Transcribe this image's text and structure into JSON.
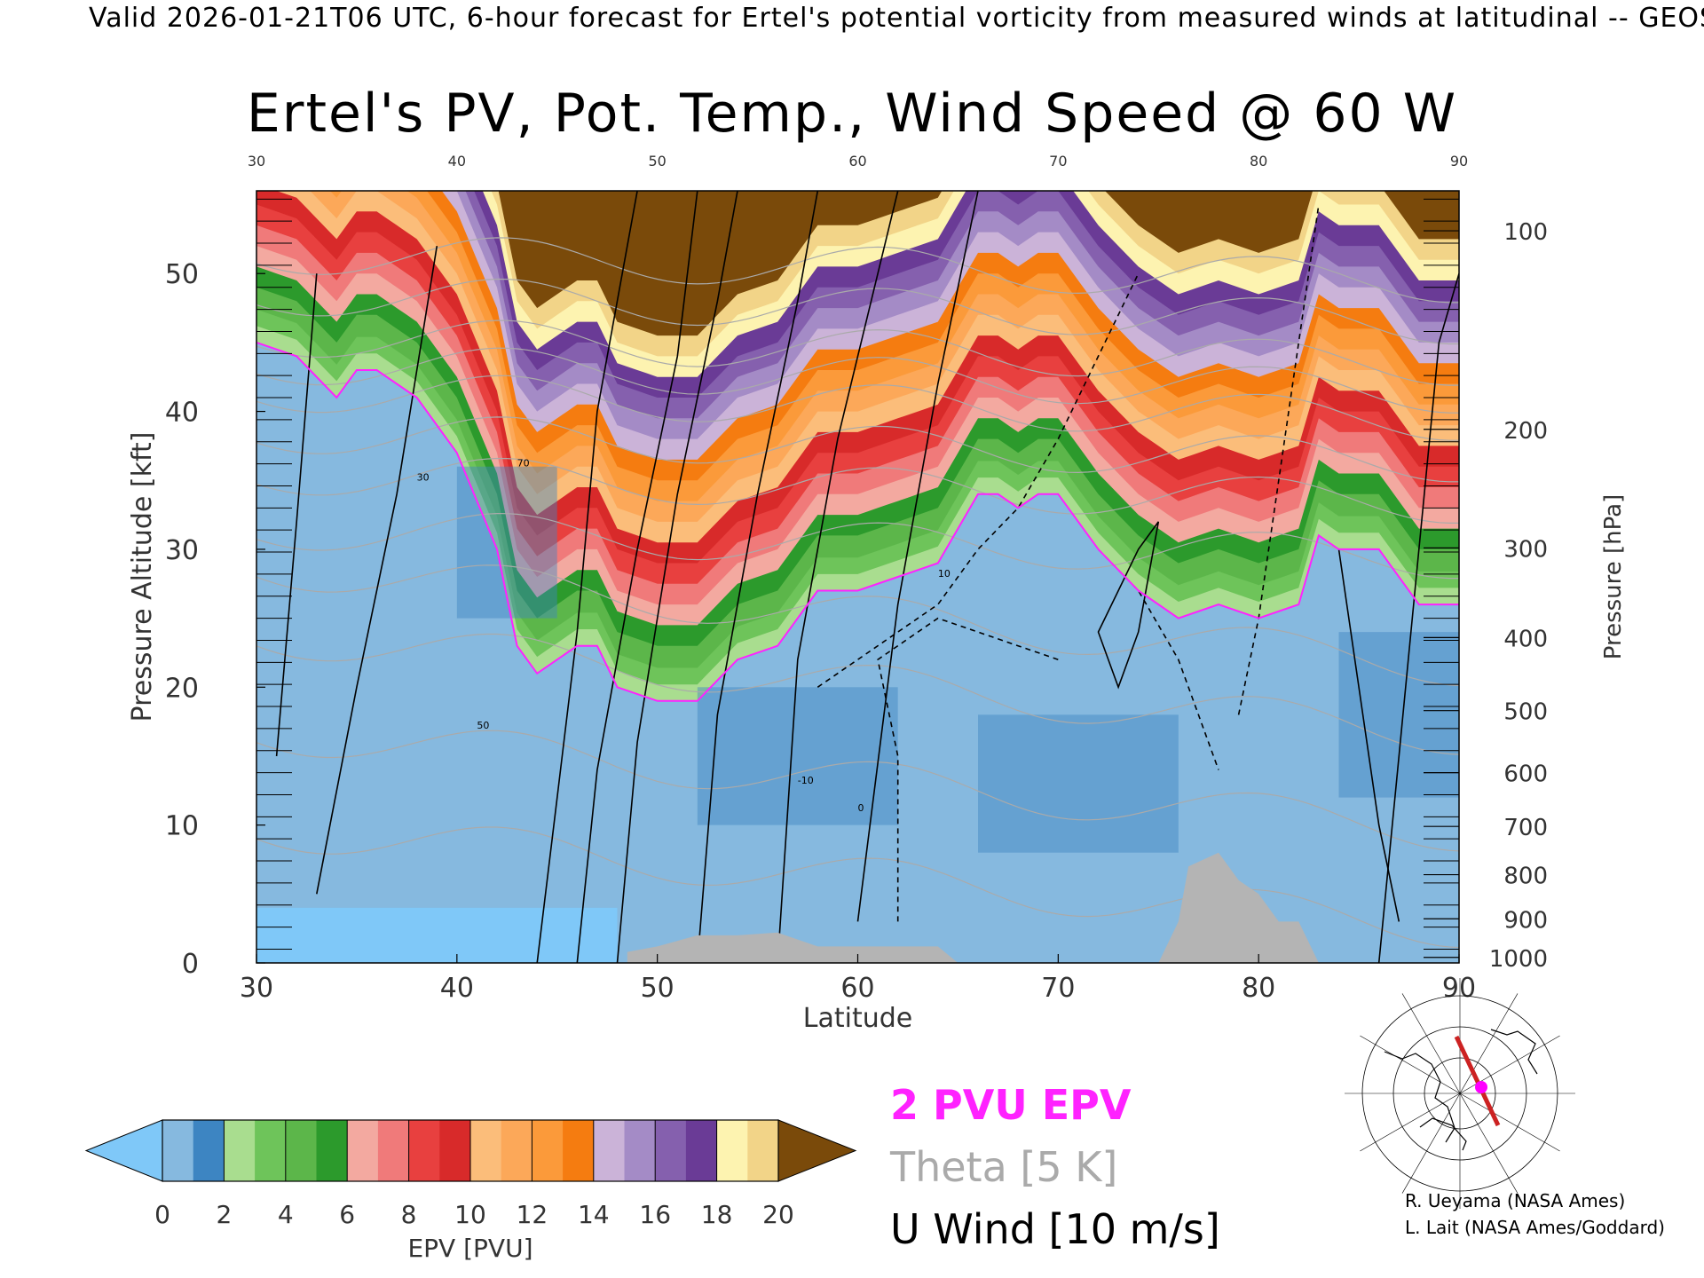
{
  "header": {
    "caption": "Valid 2026-01-21T06 UTC, 6-hour forecast for Ertel's potential vorticity from measured winds at latitudinal -- GEOS",
    "title": "Ertel's PV, Pot. Temp., Wind Speed @ 60 W"
  },
  "legend": {
    "epv_line": "2 PVU EPV",
    "theta_line": "Theta [5 K]",
    "u_line": "U Wind [10 m/s]"
  },
  "credits": {
    "line1": "R. Ueyama (NASA Ames)",
    "line2": "L. Lait (NASA Ames/Goddard)"
  },
  "colors": {
    "pv_contour": "#ff22ff",
    "theta_contour": "#aaaaaa",
    "wind_contour": "#000000",
    "terrain": "#b4b4b4",
    "map_path": "#cc2222",
    "map_marker": "#ff00ff"
  },
  "chart_data": {
    "type": "heatmap",
    "xlabel": "Latitude",
    "ylabel": "Pressure Altitude [kft]",
    "y2label": "Pressure [hPa]",
    "xlim": [
      30,
      90
    ],
    "ylim": [
      0,
      56
    ],
    "x_ticks": [
      30,
      40,
      50,
      60,
      70,
      80,
      90
    ],
    "y_ticks": [
      0,
      10,
      20,
      30,
      40,
      50
    ],
    "pressure_ticks": [
      100,
      200,
      300,
      400,
      500,
      600,
      700,
      800,
      900,
      1000
    ],
    "pressure_tick_altitudes_kft": [
      53.1,
      38.7,
      30.1,
      23.6,
      18.3,
      13.8,
      9.9,
      6.4,
      3.2,
      0.4
    ],
    "colorbar": {
      "label": "EPV [PVU]",
      "ticks": [
        0,
        2,
        4,
        6,
        8,
        10,
        12,
        14,
        16,
        18,
        20
      ],
      "extend": "both",
      "under_color": "#7fc8f8",
      "over_color": "#7a4a0a",
      "bins": [
        {
          "from": 0,
          "to": 1,
          "color": "#86b9df"
        },
        {
          "from": 1,
          "to": 2,
          "color": "#3d85c2"
        },
        {
          "from": 2,
          "to": 3,
          "color": "#a9dd8f"
        },
        {
          "from": 3,
          "to": 4,
          "color": "#6ec45a"
        },
        {
          "from": 4,
          "to": 5,
          "color": "#5cb64a"
        },
        {
          "from": 5,
          "to": 6,
          "color": "#2c9a2c"
        },
        {
          "from": 6,
          "to": 7,
          "color": "#f3a9a0"
        },
        {
          "from": 7,
          "to": 8,
          "color": "#f07a7a"
        },
        {
          "from": 8,
          "to": 9,
          "color": "#e8403f"
        },
        {
          "from": 9,
          "to": 10,
          "color": "#d82a2a"
        },
        {
          "from": 10,
          "to": 11,
          "color": "#fbbd7a"
        },
        {
          "from": 11,
          "to": 12,
          "color": "#fca859"
        },
        {
          "from": 12,
          "to": 13,
          "color": "#fb9a3a"
        },
        {
          "from": 13,
          "to": 14,
          "color": "#f57c10"
        },
        {
          "from": 14,
          "to": 15,
          "color": "#cbb3d8"
        },
        {
          "from": 15,
          "to": 16,
          "color": "#a48bc6"
        },
        {
          "from": 16,
          "to": 17,
          "color": "#8560ae"
        },
        {
          "from": 17,
          "to": 18,
          "color": "#6a3b96"
        },
        {
          "from": 18,
          "to": 19,
          "color": "#fdf3b0"
        },
        {
          "from": 19,
          "to": 20,
          "color": "#f2d488"
        }
      ]
    },
    "pv2_tropopause_kft": {
      "lat": [
        30,
        32,
        34,
        35,
        36,
        38,
        40,
        42,
        43,
        44,
        45,
        46,
        47,
        48,
        50,
        52,
        54,
        56,
        58,
        60,
        62,
        64,
        66,
        67,
        68,
        69,
        70,
        72,
        74,
        76,
        78,
        80,
        82,
        83,
        84,
        86,
        88,
        90
      ],
      "alt": [
        45,
        44,
        41,
        43,
        43,
        41,
        37,
        30,
        23,
        21,
        22,
        23,
        23,
        20,
        19,
        19,
        22,
        23,
        27,
        27,
        28,
        29,
        34,
        34,
        33,
        34,
        34,
        30,
        27,
        25,
        26,
        25,
        26,
        31,
        30,
        30,
        26,
        26
      ]
    },
    "terrain_kft": {
      "lat": [
        48.5,
        50,
        52,
        54,
        56,
        58,
        60,
        62,
        64,
        65,
        75,
        76,
        76.5,
        78,
        79,
        80,
        81,
        82,
        83
      ],
      "alt": [
        0.8,
        1.2,
        2,
        2,
        2.2,
        1.2,
        1.2,
        1.2,
        1.2,
        0,
        0,
        3,
        7,
        8,
        6,
        5,
        3,
        3,
        0
      ]
    },
    "theta_levels_K": [
      300,
      310,
      320,
      330,
      340,
      350,
      360,
      370,
      380,
      390,
      400,
      410
    ],
    "theta_alt_at_45N_kft": [
      8,
      15,
      22,
      27,
      31,
      35,
      38,
      41,
      43,
      45,
      48,
      51
    ],
    "wind_contour_labels_ms": [
      -10,
      0,
      10,
      30,
      50,
      70
    ]
  }
}
